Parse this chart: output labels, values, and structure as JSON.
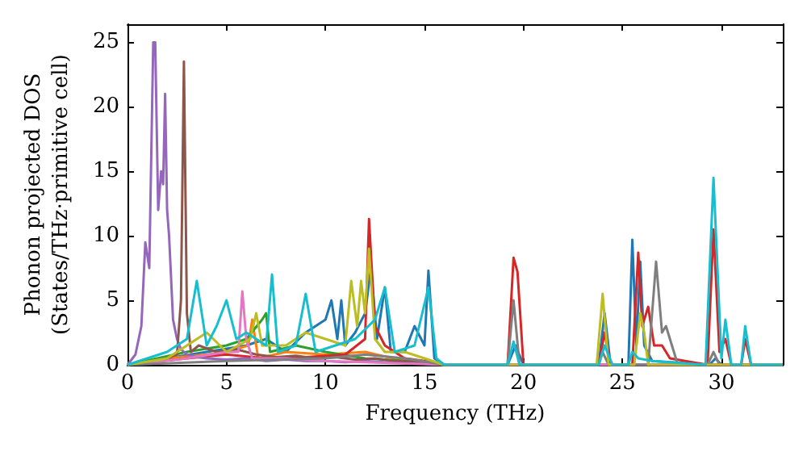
{
  "chart_data": {
    "type": "line",
    "xlabel": "Frequency (THz)",
    "ylabel": "Phonon projected DOS\n(States/THz·primitive cell)",
    "xlim": [
      0,
      33.1
    ],
    "ylim": [
      0,
      26.4
    ],
    "xticks": [
      0,
      5,
      10,
      15,
      20,
      25,
      30
    ],
    "yticks": [
      0,
      5,
      10,
      15,
      20,
      25
    ],
    "marker": "none",
    "line_style": "solid",
    "series": [
      {
        "color": "#1f77b4",
        "x": [
          0,
          2,
          4,
          6,
          7,
          8,
          9,
          10,
          10.3,
          10.6,
          10.8,
          11,
          11.5,
          12,
          12.3,
          12.6,
          13,
          13.3,
          14,
          14.5,
          15,
          15.2,
          15.5,
          16,
          19.2,
          19.6,
          20,
          23.8,
          24.1,
          24.4,
          25.3,
          25.5,
          25.7,
          25.9,
          26.1,
          26.5,
          29.4,
          29.7,
          30,
          33.1
        ],
        "values": [
          0,
          0.5,
          1,
          1.5,
          2,
          1,
          2.5,
          3.5,
          5,
          2,
          5,
          1.5,
          2.5,
          4,
          7.5,
          2,
          6,
          1,
          1,
          3,
          1.5,
          7.3,
          0.5,
          0,
          0,
          1.5,
          0,
          0,
          4,
          0,
          0,
          9.7,
          1.5,
          8,
          1.5,
          0.3,
          0,
          0.5,
          0,
          0
        ]
      },
      {
        "color": "#ff7f0e",
        "x": [
          0,
          2,
          4,
          5,
          6.1,
          6.3,
          6.6,
          8,
          10,
          12,
          14,
          16
        ],
        "values": [
          0,
          0.5,
          0.8,
          1,
          1.5,
          3.5,
          0.5,
          1,
          0.8,
          1,
          0.3,
          0
        ]
      },
      {
        "color": "#2ca02c",
        "x": [
          0,
          3,
          5,
          6,
          6.8,
          7,
          7.2,
          8.5,
          10,
          12,
          14,
          16
        ],
        "values": [
          0,
          1,
          1.5,
          2,
          3.5,
          4,
          1,
          1.5,
          1,
          0.5,
          0.3,
          0
        ]
      },
      {
        "color": "#d62728",
        "x": [
          0,
          3,
          5,
          7,
          9,
          11,
          12,
          12.2,
          12.5,
          13,
          14,
          15,
          16,
          19.2,
          19.5,
          19.7,
          20,
          23.8,
          24.1,
          24.4,
          25.5,
          25.8,
          26,
          26.3,
          26.6,
          27,
          27.4,
          29.3,
          29.6,
          29.9,
          30.2,
          30.5,
          31,
          31.2,
          31.5,
          33.1
        ],
        "values": [
          0,
          0.5,
          0.8,
          0.5,
          0.6,
          0.8,
          2,
          11.3,
          3,
          1.5,
          0.5,
          0.3,
          0,
          0,
          8.3,
          7.2,
          0,
          0,
          2.5,
          0,
          0,
          8.7,
          3,
          4.5,
          1.5,
          1.5,
          0.5,
          0,
          10.5,
          1,
          2,
          0,
          0,
          2,
          0,
          0
        ]
      },
      {
        "color": "#9467bd",
        "x": [
          0,
          0.4,
          0.7,
          0.9,
          1,
          1.1,
          1.3,
          1.4,
          1.55,
          1.7,
          1.8,
          1.9,
          2,
          2.1,
          2.3,
          2.5,
          2.7,
          3,
          3.5,
          4,
          5,
          6,
          7,
          8,
          9,
          10,
          11,
          12,
          13,
          14,
          15,
          16,
          33.1
        ],
        "values": [
          0,
          0.8,
          3,
          9.5,
          8.5,
          7.5,
          25,
          25,
          12,
          15,
          14,
          21,
          12,
          10,
          3.5,
          2,
          1.2,
          0.8,
          0.6,
          0.5,
          0.4,
          0.5,
          0.3,
          0.4,
          0.3,
          0.3,
          0.2,
          0.3,
          0.2,
          0.2,
          0.1,
          0,
          0
        ]
      },
      {
        "color": "#8c564b",
        "x": [
          0,
          1,
          2,
          2.5,
          2.7,
          2.85,
          3,
          3.2,
          3.6,
          4.5,
          5.5,
          6.5,
          7.5,
          8.5,
          9.5,
          10.5,
          11.5,
          12.5,
          13.5,
          14.5,
          15.5,
          16,
          33.1
        ],
        "values": [
          0,
          0.2,
          0.5,
          0.8,
          5,
          23.5,
          4,
          1,
          1.5,
          1,
          1.2,
          0.8,
          0.6,
          0.7,
          0.5,
          0.6,
          0.4,
          0.5,
          0.3,
          0.3,
          0.2,
          0,
          0
        ]
      },
      {
        "color": "#e377c2",
        "x": [
          0,
          3,
          5,
          5.6,
          5.8,
          6,
          6.3,
          8,
          10,
          12,
          16,
          33.1
        ],
        "values": [
          0,
          0.5,
          1,
          1,
          5.7,
          2,
          0.5,
          0.5,
          0.3,
          0.2,
          0,
          0
        ]
      },
      {
        "color": "#7f7f7f",
        "x": [
          0,
          5,
          10,
          12,
          14,
          16,
          19.2,
          19.5,
          19.8,
          23.8,
          24,
          24.3,
          26.3,
          26.7,
          27,
          27.2,
          27.5,
          27.8,
          29.3,
          29.6,
          29.9,
          33.1
        ],
        "values": [
          0,
          0.3,
          0.5,
          0.8,
          0.5,
          0,
          0,
          5,
          0,
          0,
          1,
          0,
          0,
          8,
          2.5,
          3,
          1.5,
          0,
          0,
          1,
          0,
          0
        ]
      },
      {
        "color": "#bcbd22",
        "x": [
          0,
          2,
          4,
          5,
          6.2,
          6.5,
          6.8,
          8,
          9,
          10,
          11,
          11.3,
          11.6,
          11.8,
          12,
          12.2,
          12.5,
          13,
          14,
          15,
          16,
          23.7,
          24,
          24.3,
          25.6,
          25.9,
          26.1,
          26.3,
          33.1
        ],
        "values": [
          0,
          0.5,
          2.5,
          1,
          2,
          4,
          1.5,
          1.5,
          2.5,
          2,
          1.5,
          6.5,
          3,
          6.5,
          4,
          9,
          2,
          1,
          1,
          0.5,
          0,
          0,
          5.5,
          0,
          0,
          4,
          2.5,
          0,
          0
        ]
      },
      {
        "color": "#17becf",
        "x": [
          0,
          1,
          2,
          3,
          3.5,
          4,
          4.5,
          5,
          5.5,
          6,
          7,
          7.3,
          7.6,
          8.5,
          9,
          9.5,
          10.5,
          11.5,
          12.5,
          13,
          13.5,
          14.5,
          15.2,
          15.6,
          16,
          19.2,
          19.5,
          19.8,
          23.8,
          24.1,
          24.5,
          25.3,
          25.5,
          25.8,
          26.5,
          29.2,
          29.6,
          30,
          30.2,
          30.5,
          31,
          31.2,
          31.5,
          33.1
        ],
        "values": [
          0,
          0.5,
          1,
          2,
          6.5,
          1.5,
          3,
          5,
          2,
          2.5,
          1.5,
          7,
          1,
          1.5,
          5.5,
          1,
          1.5,
          2,
          3.5,
          6,
          1,
          1.5,
          6,
          0.5,
          0,
          0,
          1.8,
          0,
          0,
          1.5,
          0,
          0,
          1,
          0.5,
          0.3,
          0,
          14.5,
          0.5,
          3.5,
          0,
          0,
          3,
          0,
          0
        ]
      }
    ]
  }
}
